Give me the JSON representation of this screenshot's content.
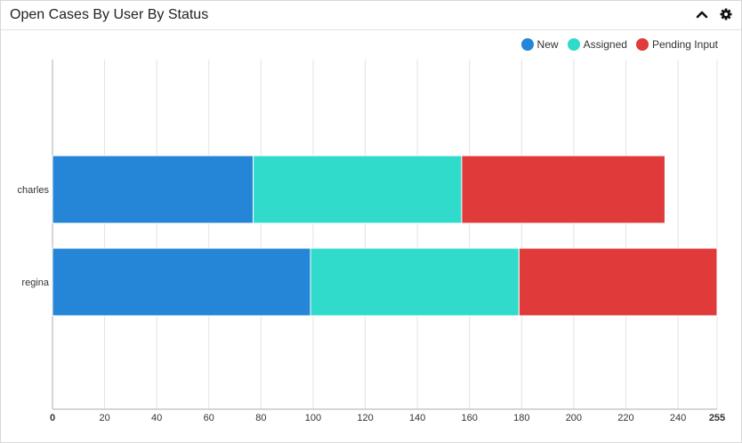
{
  "dashlet": {
    "title": "Open Cases By User By Status"
  },
  "icons": {
    "collapse": "chevron-up-icon",
    "settings": "gear-icon"
  },
  "chart_data": {
    "type": "bar",
    "orientation": "horizontal",
    "stacked": true,
    "categories": [
      "charles",
      "regina"
    ],
    "series": [
      {
        "name": "New",
        "color": "#2585d6",
        "values": [
          77,
          99
        ]
      },
      {
        "name": "Assigned",
        "color": "#30dbcc",
        "values": [
          80,
          80
        ]
      },
      {
        "name": "Pending Input",
        "color": "#e03a3a",
        "values": [
          78,
          76
        ]
      }
    ],
    "xticks": [
      0,
      20,
      40,
      60,
      80,
      100,
      120,
      140,
      160,
      180,
      200,
      220,
      240,
      255
    ],
    "xlim": [
      0,
      255
    ],
    "grid": true,
    "legend": "top-right"
  }
}
